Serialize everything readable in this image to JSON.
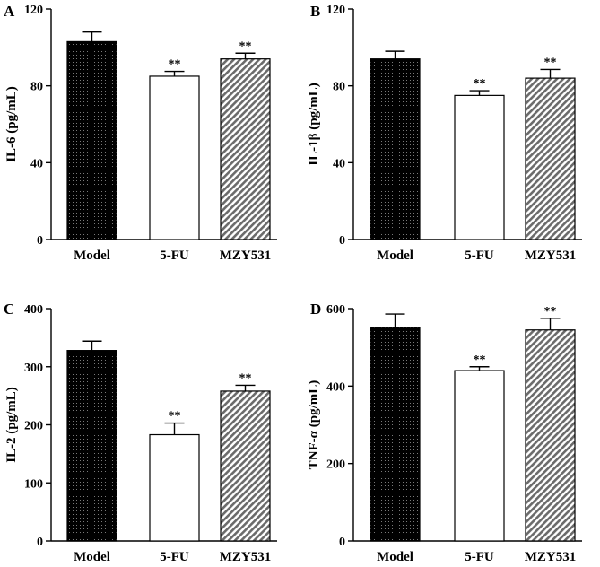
{
  "chart_data": [
    {
      "type": "bar",
      "panel_label": "A",
      "categories": [
        "Model",
        "5-FU",
        "MZY531"
      ],
      "values": [
        103,
        85,
        94
      ],
      "errors": [
        5,
        2.5,
        3
      ],
      "significance": [
        "",
        "**",
        "**"
      ],
      "ylabel": "IL-6 (pg/mL)",
      "ylim": [
        0,
        120
      ],
      "yticks": [
        "0",
        "40",
        "80",
        "120"
      ]
    },
    {
      "type": "bar",
      "panel_label": "B",
      "categories": [
        "Model",
        "5-FU",
        "MZY531"
      ],
      "values": [
        94,
        75,
        84
      ],
      "errors": [
        4,
        2.5,
        4.5
      ],
      "significance": [
        "",
        "**",
        "**"
      ],
      "ylabel": "IL-1β (pg/mL)",
      "ylim": [
        0,
        120
      ],
      "yticks": [
        "0",
        "40",
        "80",
        "120"
      ]
    },
    {
      "type": "bar",
      "panel_label": "C",
      "categories": [
        "Model",
        "5-FU",
        "MZY531"
      ],
      "values": [
        328,
        183,
        258
      ],
      "errors": [
        16,
        20,
        10
      ],
      "significance": [
        "",
        "**",
        "**"
      ],
      "ylabel": "IL-2 (pg/mL)",
      "ylim": [
        0,
        400
      ],
      "yticks": [
        "0",
        "100",
        "200",
        "300",
        "400"
      ]
    },
    {
      "type": "bar",
      "panel_label": "D",
      "categories": [
        "Model",
        "5-FU",
        "MZY531"
      ],
      "values": [
        551,
        440,
        545
      ],
      "errors": [
        35,
        10,
        30
      ],
      "significance": [
        "",
        "**",
        "**"
      ],
      "ylabel": "TNF-α (pg/mL)",
      "ylim": [
        0,
        600
      ],
      "yticks": [
        "0",
        "200",
        "400",
        "600"
      ]
    }
  ],
  "bar_styles": [
    "dotted-black",
    "white",
    "hatched-gray"
  ]
}
